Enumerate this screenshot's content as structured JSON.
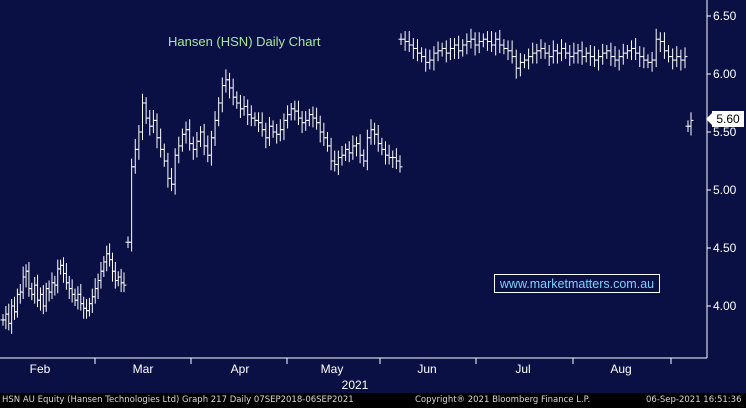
{
  "title": "Hansen (HSN) Daily Chart",
  "watermark": "www.marketmatters.com.au",
  "last_price_label": "5.60",
  "footer": {
    "left": "HSN AU Equity (Hansen Technologies Ltd) Graph 217  Daily 07SEP2018-06SEP2021",
    "center": "Copyright® 2021 Bloomberg Finance L.P.",
    "right": "06-Sep-2021 16:51:36"
  },
  "colors": {
    "background": "#0a0f44",
    "bars": "#ffffff",
    "axis": "#ffffff",
    "title": "#a8e8a0",
    "watermark": "#7fd0ff"
  },
  "chart_data": {
    "type": "ohlc",
    "title": "Hansen (HSN) Daily Chart",
    "ylim": [
      3.6,
      6.6
    ],
    "yticks": [
      "4.00",
      "4.50",
      "5.00",
      "5.50",
      "6.00",
      "6.50"
    ],
    "xticks": [
      "Feb",
      "Mar",
      "Apr",
      "May",
      "Jun",
      "Jul",
      "Aug"
    ],
    "year_label": "2021",
    "grid": false,
    "series": [
      {
        "segment": 1,
        "closes": [
          3.88,
          3.93,
          3.85,
          4.0,
          3.95,
          4.1,
          4.12,
          4.25,
          4.3,
          4.15,
          4.1,
          4.18,
          4.05,
          4.1,
          4.0,
          4.15,
          4.12,
          4.2,
          4.18,
          4.32,
          4.35,
          4.28,
          4.2,
          4.15,
          4.1,
          4.05,
          4.1,
          4.02,
          3.98,
          3.96,
          4.02,
          4.08,
          4.15,
          4.22,
          4.3,
          4.38,
          4.45,
          4.4,
          4.3,
          4.22,
          4.25,
          4.2,
          4.18
        ]
      },
      {
        "segment": 2,
        "closes": [
          4.55,
          5.2,
          5.35,
          5.5,
          5.75,
          5.62,
          5.55,
          5.6,
          5.45,
          5.35,
          5.25,
          5.1,
          5.05,
          5.3,
          5.38,
          5.48,
          5.52,
          5.4,
          5.35,
          5.42,
          5.5,
          5.38,
          5.3,
          5.45,
          5.6,
          5.75,
          5.9,
          5.95,
          5.88,
          5.8,
          5.75,
          5.7,
          5.72,
          5.65,
          5.62,
          5.6,
          5.58,
          5.52,
          5.45,
          5.55,
          5.5,
          5.48,
          5.52,
          5.6,
          5.65,
          5.7,
          5.68,
          5.62,
          5.58,
          5.6,
          5.65,
          5.62,
          5.58,
          5.5,
          5.45,
          5.38,
          5.25,
          5.22,
          5.28,
          5.3,
          5.35,
          5.32,
          5.38,
          5.4,
          5.3,
          5.25,
          5.45,
          5.52,
          5.48,
          5.4,
          5.35,
          5.3,
          5.28,
          5.28,
          5.25,
          5.2
        ]
      },
      {
        "segment": 3,
        "closes": [
          6.3,
          6.28,
          6.25,
          6.22,
          6.18,
          6.15,
          6.1,
          6.12,
          6.18,
          6.2,
          6.22,
          6.18,
          6.22,
          6.25,
          6.2,
          6.25,
          6.28,
          6.3,
          6.25,
          6.28,
          6.3,
          6.28,
          6.25,
          6.3,
          6.25,
          6.22,
          6.2,
          6.15,
          6.05,
          6.1,
          6.12,
          6.15,
          6.18,
          6.2,
          6.22,
          6.18,
          6.15,
          6.2,
          6.18,
          6.22,
          6.18,
          6.15,
          6.18,
          6.2,
          6.15,
          6.18,
          6.15,
          6.12,
          6.15,
          6.18,
          6.2,
          6.15,
          6.12,
          6.15,
          6.18,
          6.2,
          6.22,
          6.18,
          6.15,
          6.12,
          6.1,
          6.12,
          6.3,
          6.28,
          6.2,
          6.15,
          6.12,
          6.15,
          6.12,
          6.15
        ]
      },
      {
        "segment": 4,
        "closes": [
          5.55,
          5.6
        ]
      }
    ]
  }
}
